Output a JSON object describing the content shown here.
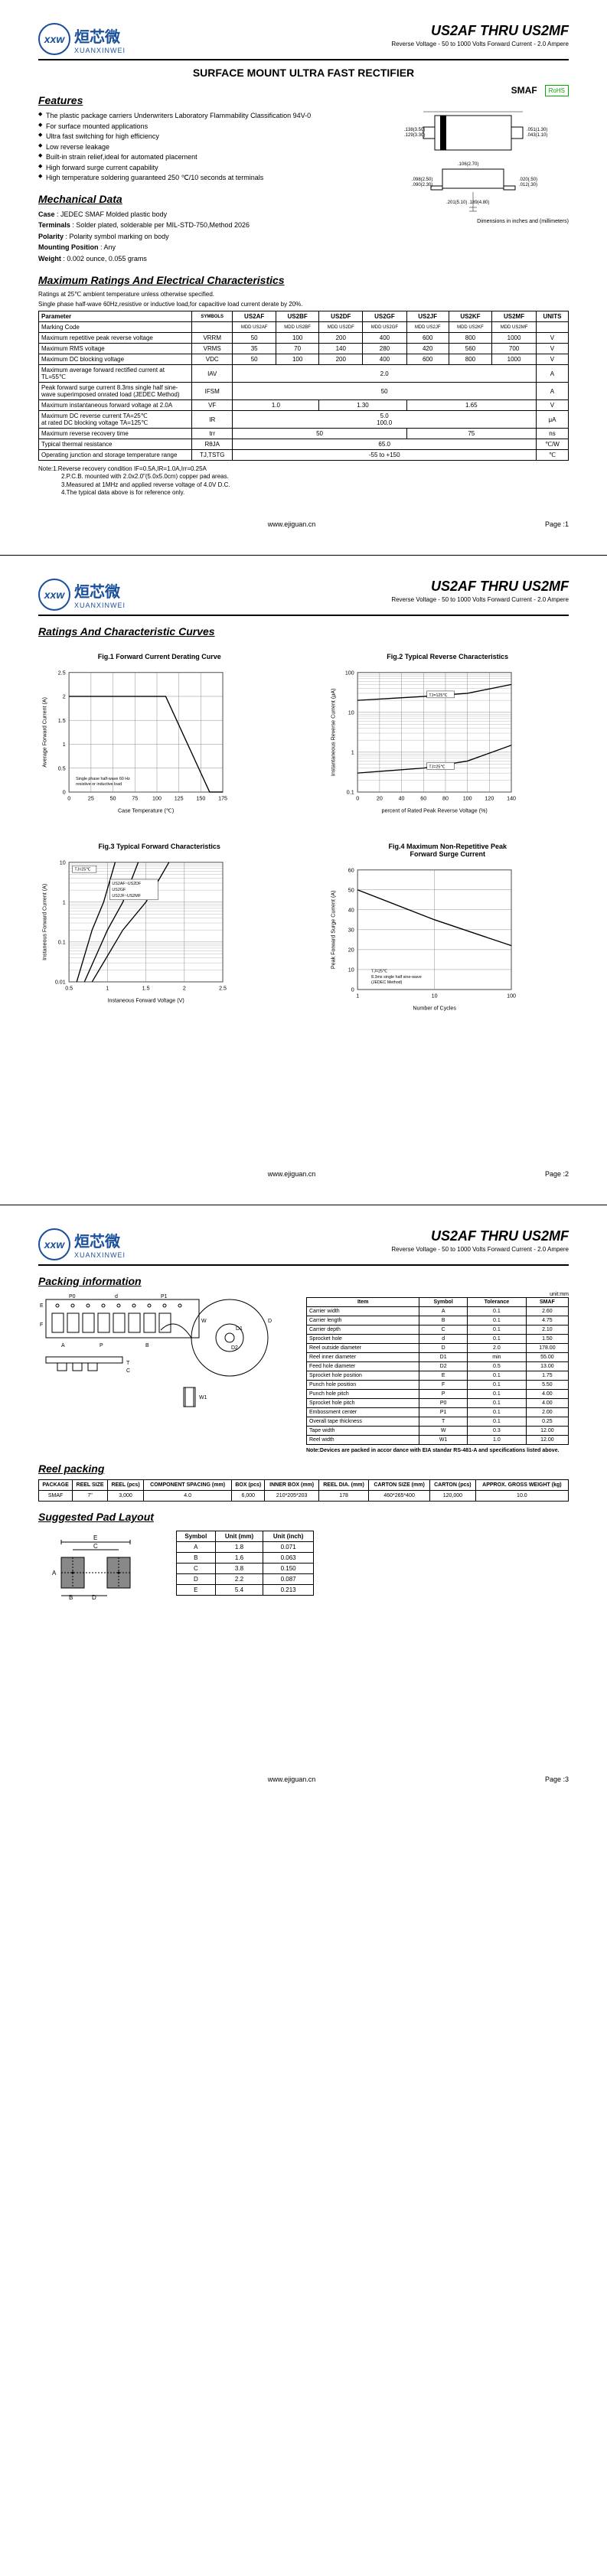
{
  "logo_cn": "烜芯微",
  "logo_en": "XUANXINWEI",
  "logo_mark": "xxw",
  "part_title": "US2AF THRU US2MF",
  "part_sub": "Reverse Voltage - 50 to 1000 Volts    Forward Current - 2.0 Ampere",
  "main_section": "SURFACE MOUNT ULTRA FAST  RECTIFIER",
  "smaf_label": "SMAF",
  "rohs_label": "RoHS",
  "features_title": "Features",
  "features": [
    "The plastic package carriers Underwriters Laboratory Flammability Classification 94V-0",
    "For surface mounted applications",
    "Ultra fast switching for high efficiency",
    "Low reverse leakage",
    "Built-in strain relief,ideal for automated placement",
    "High forward surge current capability",
    "High temperature soldering guaranteed 250 ℃/10 seconds at terminals"
  ],
  "mech_title": "Mechanical Data",
  "mech": {
    "case": "JEDEC SMAF Molded plastic body",
    "terminals": "Solder plated, solderable per MIL-STD-750,Method 2026",
    "polarity": "Polarity symbol  marking on body",
    "mounting": "Any",
    "weight": "0.002 ounce, 0.055 grams"
  },
  "dim_note": "Dimensions in inches and (millimeters)",
  "ratings_title": "Maximum Ratings And Electrical Characteristics",
  "ratings_note1": "Ratings at 25℃ ambient temperature unless otherwise specified.",
  "ratings_note2": "Single phase half-wave 60Hz,resistive or inductive load,for capacitive load current derate by 20%.",
  "ratings": {
    "header": [
      "Parameter",
      "SYMBOLS",
      "US2AF",
      "US2BF",
      "US2DF",
      "US2GF",
      "US2JF",
      "US2KF",
      "US2MF",
      "UNITS"
    ],
    "marking_row": [
      "Marking Code",
      "",
      "MDD US2AF",
      "MDD US2BF",
      "MDD US2DF",
      "MDD US2GF",
      "MDD US2JF",
      "MDD US2KF",
      "MDD US2MF",
      ""
    ],
    "rows": [
      {
        "p": "Maximum repetitive peak reverse voltage",
        "s": "VRRM",
        "v": [
          "50",
          "100",
          "200",
          "400",
          "600",
          "800",
          "1000"
        ],
        "u": "V"
      },
      {
        "p": "Maximum RMS voltage",
        "s": "VRMS",
        "v": [
          "35",
          "70",
          "140",
          "280",
          "420",
          "560",
          "700"
        ],
        "u": "V"
      },
      {
        "p": "Maximum DC blocking voltage",
        "s": "VDC",
        "v": [
          "50",
          "100",
          "200",
          "400",
          "600",
          "800",
          "1000"
        ],
        "u": "V"
      },
      {
        "p": "Maximum average forward rectified current at TL=55℃",
        "s": "IAV",
        "span": "2.0",
        "u": "A"
      },
      {
        "p": "Peak forward surge current 8.3ms single half sine-wave superimposed onrated load (JEDEC Method)",
        "s": "IFSM",
        "span": "50",
        "u": "A"
      },
      {
        "p": "Maximum instantaneous forward voltage at 2.0A",
        "s": "VF",
        "groups": [
          [
            "1.0",
            2
          ],
          [
            "1.30",
            2
          ],
          [
            "1.65",
            3
          ]
        ],
        "u": "V"
      },
      {
        "p": "Maximum DC reverse current    TA=25℃\nat rated DC blocking voltage    TA=125℃",
        "s": "IR",
        "stack": [
          "5.0",
          "100.0"
        ],
        "u": "μA"
      },
      {
        "p": "Maximum reverse recovery time",
        "s": "trr",
        "groups": [
          [
            "50",
            4
          ],
          [
            "75",
            3
          ]
        ],
        "u": "ns"
      },
      {
        "p": "Typical thermal resistance",
        "s": "RθJA",
        "span": "65.0",
        "u": "℃/W"
      },
      {
        "p": "Operating junction and storage temperature range",
        "s": "TJ,TSTG",
        "span": "-55 to +150",
        "u": "℃"
      }
    ]
  },
  "notes": [
    "Note:1.Reverse recovery condition IF=0.5A,IR=1.0A,Irr=0.25A",
    "2.P.C.B. mounted with 2.0x2.0\"(5.0x5.0cm) copper pad areas.",
    "3.Measured at 1MHz and applied reverse voltage of 4.0V D.C.",
    "4.The typical data above is for reference only."
  ],
  "footer_url": "www.ejiguan.cn",
  "page1": "Page :1",
  "page2": "Page :2",
  "page3": "Page :3",
  "curves_title": "Ratings And Characteristic Curves",
  "curves": {
    "f1": {
      "title": "Fig.1 Forward Current Derating Curve",
      "xlabel": "Case Temperature (℃)",
      "ylabel": "Average Forward Current (A)",
      "xlim": [
        0,
        175
      ],
      "xticks": [
        0,
        25,
        50,
        75,
        100,
        125,
        150,
        175
      ],
      "ylim": [
        0,
        2.5
      ],
      "yticks": [
        0,
        0.5,
        1.0,
        1.5,
        2.0,
        2.5
      ],
      "line": [
        [
          0,
          2.0
        ],
        [
          110,
          2.0
        ],
        [
          160,
          0
        ],
        [
          175,
          0
        ]
      ],
      "note": "Single phase half-wave 60 Hz\nresistive or inductive load",
      "line_color": "#000",
      "grid_color": "#808080",
      "bg": "#fff"
    },
    "f2": {
      "title": "Fig.2 Typical Reverse Characteristics",
      "xlabel": "percent of Rated Peak Reverse Voltage (%)",
      "ylabel": "Instantaneous Reverse Current (μA)",
      "xlim": [
        0,
        140
      ],
      "xticks": [
        0,
        20,
        40,
        60,
        80,
        100,
        120,
        140
      ],
      "ylog": true,
      "yticks": [
        0.1,
        1,
        10,
        100
      ],
      "lines": [
        {
          "label": "TJ=125℃",
          "pts": [
            [
              0,
              20
            ],
            [
              60,
              25
            ],
            [
              100,
              30
            ],
            [
              140,
              50
            ]
          ]
        },
        {
          "label": "TJ=25℃",
          "pts": [
            [
              0,
              0.3
            ],
            [
              60,
              0.4
            ],
            [
              100,
              0.6
            ],
            [
              140,
              1.5
            ]
          ]
        }
      ],
      "line_color": "#000",
      "grid_color": "#808080"
    },
    "f3": {
      "title": "Fig.3 Typical Forward Characteristics",
      "xlabel": "Instaneous Forward Voltage (V)",
      "ylabel": "Instaneous Forward Current (A)",
      "xlim": [
        0.5,
        2.5
      ],
      "xticks": [
        0.5,
        1.0,
        1.5,
        2.0,
        2.5
      ],
      "ylog": true,
      "yticks": [
        0.01,
        0.1,
        1,
        10
      ],
      "lines": [
        {
          "label": "US2AF~US2DF",
          "pts": [
            [
              0.6,
              0.01
            ],
            [
              0.8,
              0.2
            ],
            [
              0.95,
              1
            ],
            [
              1.1,
              10
            ]
          ]
        },
        {
          "label": "US2GF",
          "pts": [
            [
              0.7,
              0.01
            ],
            [
              1.0,
              0.2
            ],
            [
              1.2,
              1
            ],
            [
              1.4,
              10
            ]
          ]
        },
        {
          "label": "US2JF~US2MF",
          "pts": [
            [
              0.8,
              0.01
            ],
            [
              1.2,
              0.2
            ],
            [
              1.5,
              1
            ],
            [
              1.8,
              10
            ]
          ]
        }
      ],
      "tj_note": "TJ=25℃",
      "line_color": "#000",
      "grid_color": "#808080"
    },
    "f4": {
      "title": "Fig.4 Maximum Non-Repetitive Peak\nForward Surge Current",
      "xlabel": "Number of Cycles",
      "ylabel": "Peak Forward Surge Current (A)",
      "xlog": true,
      "xticks": [
        1,
        10,
        100
      ],
      "ylim": [
        0,
        60
      ],
      "yticks": [
        0,
        10,
        20,
        30,
        40,
        50,
        60
      ],
      "line": [
        [
          1,
          50
        ],
        [
          10,
          35
        ],
        [
          100,
          22
        ]
      ],
      "note": "TJ=25℃\n8.3ms single half sine-wave\n(JEDEC Method)",
      "line_color": "#000",
      "grid_color": "#808080"
    }
  },
  "packing_title": "Packing information",
  "packing_unit": "unit:mm",
  "packing_header": [
    "Item",
    "Symbol",
    "Tolerance",
    "SMAF"
  ],
  "packing_rows": [
    [
      "Carrier width",
      "A",
      "0.1",
      "2.60"
    ],
    [
      "Carrier length",
      "B",
      "0.1",
      "4.75"
    ],
    [
      "Carrier depth",
      "C",
      "0.1",
      "2.10"
    ],
    [
      "Sprocket hole",
      "d",
      "0.1",
      "1.50"
    ],
    [
      "Reel outside diameter",
      "D",
      "2.0",
      "178.00"
    ],
    [
      "Reel inner diameter",
      "D1",
      "min",
      "55.00"
    ],
    [
      "Feed hole diameter",
      "D2",
      "0.5",
      "13.00"
    ],
    [
      "Sprocket hole position",
      "E",
      "0.1",
      "1.75"
    ],
    [
      "Punch hole position",
      "F",
      "0.1",
      "5.50"
    ],
    [
      "Punch hole pitch",
      "P",
      "0.1",
      "4.00"
    ],
    [
      "Sprocket hole pitch",
      "P0",
      "0.1",
      "4.00"
    ],
    [
      "Embossment center",
      "P1",
      "0.1",
      "2.00"
    ],
    [
      "Overall tape thickness",
      "T",
      "0.1",
      "0.25"
    ],
    [
      "Tape width",
      "W",
      "0.3",
      "12.00"
    ],
    [
      "Reel width",
      "W1",
      "1.0",
      "12.00"
    ]
  ],
  "packing_note": "Note:Devices are packed in accor dance with EIA standar RS-481-A and specifications listed above.",
  "reel_title": "Reel packing",
  "reel_header": [
    "PACKAGE",
    "REEL SIZE",
    "REEL (pcs)",
    "COMPONENT SPACING (mm)",
    "BOX (pcs)",
    "INNER BOX (mm)",
    "REEL DIA. (mm)",
    "CARTON SIZE (mm)",
    "CARTON (pcs)",
    "APPROX. GROSS WEIGHT (kg)"
  ],
  "reel_row": [
    "SMAF",
    "7\"",
    "3,000",
    "4.0",
    "6,000",
    "210*205*203",
    "178",
    "460*265*400",
    "120,000",
    "10.0"
  ],
  "pad_title": "Suggested Pad Layout",
  "pad_header": [
    "Symbol",
    "Unit (mm)",
    "Unit (inch)"
  ],
  "pad_rows": [
    [
      "A",
      "1.8",
      "0.071"
    ],
    [
      "B",
      "1.6",
      "0.063"
    ],
    [
      "C",
      "3.8",
      "0.150"
    ],
    [
      "D",
      "2.2",
      "0.087"
    ],
    [
      "E",
      "5.4",
      "0.213"
    ]
  ]
}
